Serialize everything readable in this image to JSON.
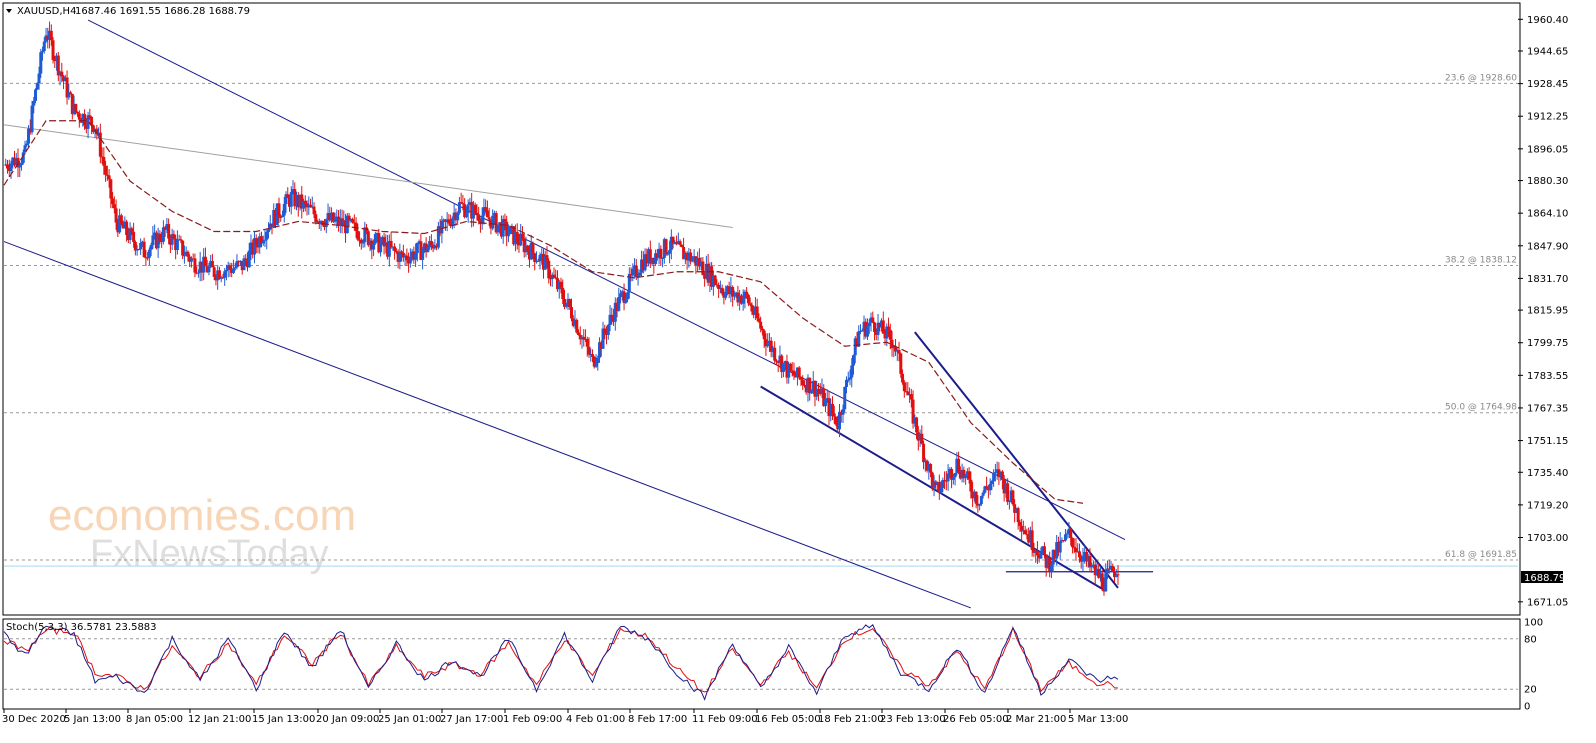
{
  "header": {
    "symbol": "XAUUSD,H4",
    "ohlc": "1687.46 1691.55 1686.28 1688.79"
  },
  "watermark": {
    "line1": "economies.com",
    "line2": "FxNewsToday"
  },
  "colors": {
    "bull": "#1f5bd6",
    "bear": "#e01010",
    "channel": "#1c1c8c",
    "ma": "#8b1a1a",
    "fib": "#9a9a9a",
    "price_line": "#a8d8f0"
  },
  "chart_data": {
    "type": "candlestick",
    "timeframe": "H4",
    "ylim": [
      1665,
      1968
    ],
    "y_ticks": [
      "1960.40",
      "1944.65",
      "1928.45",
      "1912.25",
      "1896.05",
      "1880.30",
      "1864.10",
      "1847.90",
      "1831.70",
      "1815.95",
      "1799.75",
      "1783.55",
      "1767.35",
      "1751.15",
      "1735.40",
      "1719.20",
      "1703.00",
      "1671.05"
    ],
    "x_ticks": [
      "30 Dec 2020",
      "5 Jan 13:00",
      "8 Jan 05:00",
      "12 Jan 21:00",
      "15 Jan 13:00",
      "20 Jan 09:00",
      "25 Jan 01:00",
      "27 Jan 17:00",
      "1 Feb 09:00",
      "4 Feb 01:00",
      "8 Feb 17:00",
      "11 Feb 09:00",
      "16 Feb 05:00",
      "18 Feb 21:00",
      "23 Feb 13:00",
      "26 Feb 05:00",
      "2 Mar 21:00",
      "5 Mar 13:00"
    ],
    "last_price": "1688.79",
    "fib_levels": [
      {
        "label": "23.6 @ 1928.60",
        "value": 1928.6
      },
      {
        "label": "38.2 @ 1838.12",
        "value": 1838.12
      },
      {
        "label": "50.0 @ 1764.98",
        "value": 1764.98
      },
      {
        "label": "61.8 @ 1691.85",
        "value": 1691.85
      }
    ],
    "close_path": [
      [
        0,
        1888
      ],
      [
        3,
        1893
      ],
      [
        6,
        1955
      ],
      [
        10,
        1915
      ],
      [
        13,
        1908
      ],
      [
        16,
        1860
      ],
      [
        20,
        1845
      ],
      [
        23,
        1855
      ],
      [
        27,
        1840
      ],
      [
        30,
        1835
      ],
      [
        34,
        1838
      ],
      [
        38,
        1860
      ],
      [
        41,
        1872
      ],
      [
        45,
        1862
      ],
      [
        49,
        1858
      ],
      [
        53,
        1850
      ],
      [
        57,
        1842
      ],
      [
        61,
        1848
      ],
      [
        65,
        1868
      ],
      [
        69,
        1862
      ],
      [
        73,
        1852
      ],
      [
        77,
        1840
      ],
      [
        81,
        1815
      ],
      [
        84,
        1790
      ],
      [
        87,
        1815
      ],
      [
        91,
        1840
      ],
      [
        95,
        1848
      ],
      [
        99,
        1840
      ],
      [
        103,
        1825
      ],
      [
        106,
        1822
      ],
      [
        109,
        1800
      ],
      [
        112,
        1785
      ],
      [
        116,
        1777
      ],
      [
        119,
        1760
      ],
      [
        122,
        1805
      ],
      [
        124,
        1810
      ],
      [
        127,
        1800
      ],
      [
        130,
        1760
      ],
      [
        133,
        1725
      ],
      [
        136,
        1740
      ],
      [
        139,
        1722
      ],
      [
        142,
        1735
      ],
      [
        146,
        1705
      ],
      [
        149,
        1690
      ],
      [
        152,
        1704
      ],
      [
        155,
        1688
      ],
      [
        157,
        1681
      ],
      [
        159,
        1689
      ]
    ],
    "x_index_max": 160,
    "moving_average_path": [
      [
        0,
        1878
      ],
      [
        6,
        1910
      ],
      [
        12,
        1910
      ],
      [
        18,
        1880
      ],
      [
        24,
        1865
      ],
      [
        30,
        1855
      ],
      [
        36,
        1855
      ],
      [
        42,
        1860
      ],
      [
        48,
        1858
      ],
      [
        54,
        1855
      ],
      [
        60,
        1854
      ],
      [
        66,
        1860
      ],
      [
        72,
        1858
      ],
      [
        78,
        1848
      ],
      [
        84,
        1835
      ],
      [
        90,
        1832
      ],
      [
        96,
        1835
      ],
      [
        102,
        1835
      ],
      [
        108,
        1830
      ],
      [
        114,
        1812
      ],
      [
        120,
        1798
      ],
      [
        126,
        1800
      ],
      [
        132,
        1790
      ],
      [
        138,
        1760
      ],
      [
        144,
        1740
      ],
      [
        150,
        1722
      ],
      [
        154,
        1720
      ]
    ],
    "upper_channel": [
      [
        12,
        1960
      ],
      [
        160,
        1702
      ]
    ],
    "lower_channel": [
      [
        0,
        1850
      ],
      [
        138,
        1668
      ]
    ],
    "secondary_trendline": [
      [
        0,
        1908
      ],
      [
        104,
        1857
      ]
    ],
    "wedge_lower": [
      [
        108,
        1778
      ],
      [
        157,
        1677
      ]
    ],
    "wedge_upper": [
      [
        130,
        1805
      ],
      [
        159,
        1678
      ]
    ],
    "support_line": [
      [
        143,
        1686
      ],
      [
        164,
        1686
      ]
    ],
    "stochastic": {
      "label": "Stoch(5,3,3) 36.5781 23.5883",
      "ylim": [
        0,
        100
      ],
      "levels": [
        20,
        80
      ],
      "y_ticks": [
        "100",
        "80",
        "20",
        "0"
      ],
      "k_path": [
        [
          0,
          85
        ],
        [
          3,
          60
        ],
        [
          6,
          95
        ],
        [
          10,
          85
        ],
        [
          13,
          30
        ],
        [
          16,
          35
        ],
        [
          20,
          15
        ],
        [
          24,
          80
        ],
        [
          28,
          30
        ],
        [
          32,
          80
        ],
        [
          36,
          20
        ],
        [
          40,
          90
        ],
        [
          44,
          45
        ],
        [
          48,
          92
        ],
        [
          52,
          20
        ],
        [
          56,
          75
        ],
        [
          60,
          30
        ],
        [
          64,
          55
        ],
        [
          68,
          35
        ],
        [
          72,
          80
        ],
        [
          76,
          20
        ],
        [
          80,
          85
        ],
        [
          84,
          30
        ],
        [
          88,
          95
        ],
        [
          92,
          80
        ],
        [
          96,
          40
        ],
        [
          100,
          10
        ],
        [
          104,
          75
        ],
        [
          108,
          20
        ],
        [
          112,
          70
        ],
        [
          116,
          15
        ],
        [
          120,
          85
        ],
        [
          124,
          95
        ],
        [
          128,
          40
        ],
        [
          132,
          20
        ],
        [
          136,
          70
        ],
        [
          140,
          15
        ],
        [
          144,
          95
        ],
        [
          148,
          15
        ],
        [
          152,
          55
        ],
        [
          156,
          30
        ],
        [
          159,
          35
        ]
      ],
      "d_path": [
        [
          0,
          80
        ],
        [
          3,
          65
        ],
        [
          6,
          90
        ],
        [
          10,
          88
        ],
        [
          13,
          40
        ],
        [
          16,
          35
        ],
        [
          20,
          20
        ],
        [
          24,
          70
        ],
        [
          28,
          35
        ],
        [
          32,
          75
        ],
        [
          36,
          25
        ],
        [
          40,
          85
        ],
        [
          44,
          50
        ],
        [
          48,
          88
        ],
        [
          52,
          25
        ],
        [
          56,
          70
        ],
        [
          60,
          35
        ],
        [
          64,
          50
        ],
        [
          68,
          38
        ],
        [
          72,
          75
        ],
        [
          76,
          25
        ],
        [
          80,
          80
        ],
        [
          84,
          35
        ],
        [
          88,
          92
        ],
        [
          92,
          82
        ],
        [
          96,
          45
        ],
        [
          100,
          15
        ],
        [
          104,
          68
        ],
        [
          108,
          25
        ],
        [
          112,
          65
        ],
        [
          116,
          20
        ],
        [
          120,
          80
        ],
        [
          124,
          93
        ],
        [
          128,
          45
        ],
        [
          132,
          25
        ],
        [
          136,
          65
        ],
        [
          140,
          20
        ],
        [
          144,
          90
        ],
        [
          148,
          20
        ],
        [
          152,
          50
        ],
        [
          156,
          28
        ],
        [
          159,
          24
        ]
      ]
    }
  }
}
